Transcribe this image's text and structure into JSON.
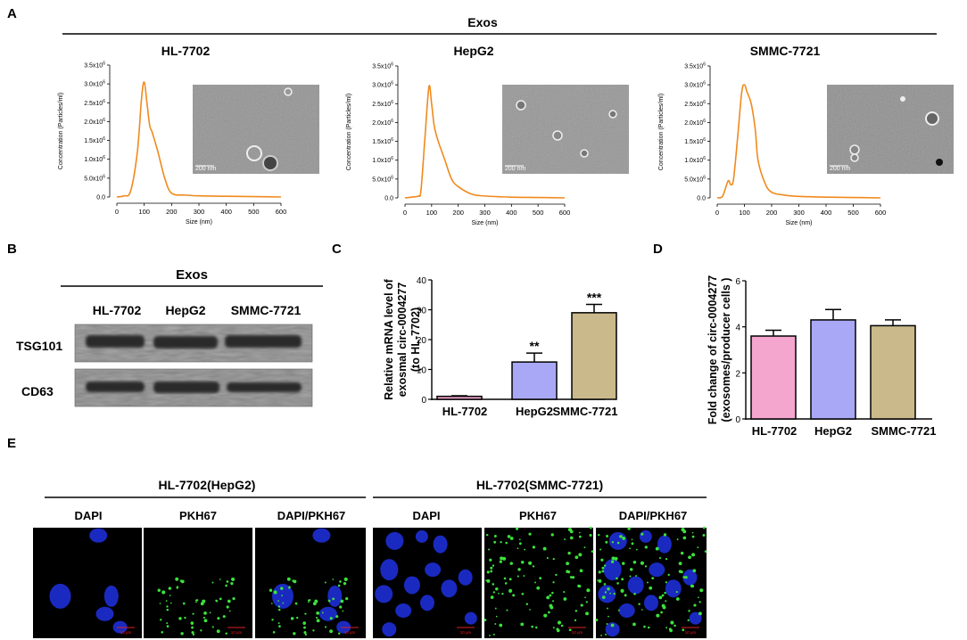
{
  "panel_labels": {
    "A": "A",
    "B": "B",
    "C": "C",
    "D": "D",
    "E": "E"
  },
  "panel_a": {
    "group_label": "Exos",
    "nta_plots": [
      {
        "title": "HL-7702",
        "ylabel": "Concentration (Particles/ml)",
        "xlabel": "Size (nm)",
        "y_ticks": [
          "0.0",
          "5.0x10",
          "1.0x10",
          "1.5x10",
          "2.0x10",
          "2.5x10",
          "3.0x10",
          "3.5x10"
        ],
        "y_tick_exp": "6",
        "x_ticks": [
          "0",
          "100",
          "200",
          "300",
          "400",
          "500",
          "600"
        ],
        "scale_bar": "200 nm"
      },
      {
        "title": "HepG2",
        "ylabel": "Concentration (Particles/ml)",
        "xlabel": "Size (nm)",
        "y_ticks": [
          "0.0",
          "5.0x10",
          "1.0x10",
          "1.5x10",
          "2.0x10",
          "2.5x10",
          "3.0x10",
          "3.5x10"
        ],
        "y_tick_exp": "6",
        "x_ticks": [
          "0",
          "100",
          "200",
          "300",
          "400",
          "500",
          "600"
        ],
        "scale_bar": "200 nm"
      },
      {
        "title": "SMMC-7721",
        "ylabel": "Concentration (Particles/ml)",
        "xlabel": "Size (nm)",
        "y_ticks": [
          "0.0",
          "5.0x10",
          "1.0x10",
          "1.5x10",
          "2.0x10",
          "2.5x10",
          "3.0x10",
          "3.5x10"
        ],
        "y_tick_exp": "6",
        "x_ticks": [
          "0",
          "100",
          "200",
          "300",
          "400",
          "500",
          "600"
        ],
        "scale_bar": "200 nm"
      }
    ]
  },
  "panel_b": {
    "group_label": "Exos",
    "lanes": [
      "HL-7702",
      "HepG2",
      "SMMC-7721"
    ],
    "bands": [
      "TSG101",
      "CD63"
    ]
  },
  "panel_e": {
    "groups": [
      "HL-7702(HepG2)",
      "HL-7702(SMMC-7721)"
    ],
    "channels": [
      "DAPI",
      "PKH67",
      "DAPI/PKH67"
    ],
    "scale_bar": "10 μm"
  },
  "chart_data": [
    {
      "type": "line",
      "x": [
        0,
        25,
        50,
        75,
        90,
        100,
        110,
        120,
        130,
        150,
        175,
        200,
        250,
        300,
        400,
        500,
        600
      ],
      "y": [
        0.0,
        0.03,
        0.15,
        1.2,
        2.6,
        3.05,
        2.5,
        1.9,
        1.7,
        1.2,
        0.5,
        0.1,
        0.05,
        0.03,
        0.02,
        0.01,
        0.0
      ],
      "xlabel": "Size (nm)",
      "ylabel": "Concentration (Particles/ml)",
      "xlim": [
        0,
        600
      ],
      "ylim": [
        0,
        3.5
      ],
      "y_unit_exp": 6,
      "color": "#f08a1e"
    },
    {
      "type": "line",
      "x": [
        0,
        25,
        50,
        60,
        75,
        90,
        100,
        110,
        125,
        150,
        175,
        200,
        250,
        300,
        400,
        500,
        600
      ],
      "y": [
        0.0,
        0.02,
        0.05,
        0.2,
        1.6,
        2.95,
        2.5,
        1.9,
        1.5,
        1.0,
        0.5,
        0.3,
        0.1,
        0.05,
        0.02,
        0.01,
        0.0
      ],
      "xlabel": "Size (nm)",
      "ylabel": "Concentration (Particles/ml)",
      "xlim": [
        0,
        600
      ],
      "ylim": [
        0,
        3.5
      ],
      "y_unit_exp": 6,
      "color": "#f08a1e"
    },
    {
      "type": "line",
      "x": [
        0,
        20,
        40,
        50,
        60,
        75,
        90,
        100,
        110,
        125,
        140,
        150,
        175,
        200,
        250,
        300,
        400,
        500,
        600
      ],
      "y": [
        0.0,
        0.05,
        0.45,
        0.35,
        0.5,
        1.6,
        2.8,
        3.0,
        2.8,
        2.5,
        1.8,
        1.0,
        0.4,
        0.15,
        0.07,
        0.04,
        0.02,
        0.01,
        0.0
      ],
      "xlabel": "Size (nm)",
      "ylabel": "Concentration (Particles/ml)",
      "xlim": [
        0,
        600
      ],
      "ylim": [
        0,
        3.5
      ],
      "y_unit_exp": 6,
      "color": "#f08a1e"
    },
    {
      "type": "bar",
      "categories": [
        "HL-7702",
        "HepG2",
        "SMMC-7721"
      ],
      "values": [
        1,
        12.5,
        29
      ],
      "errors": [
        0.2,
        3,
        2.8
      ],
      "significance": [
        "",
        "**",
        "***"
      ],
      "ylabel": "Relative mRNA level of exosmal circ-0004277 (to HL-7702)",
      "ylim": [
        0,
        40
      ],
      "y_ticks": [
        0,
        10,
        20,
        30,
        40
      ],
      "colors": [
        "#f4a6cf",
        "#a9a8f6",
        "#c9b98b"
      ]
    },
    {
      "type": "bar",
      "categories": [
        "HL-7702",
        "HepG2",
        "SMMC-7721"
      ],
      "values": [
        3.6,
        4.3,
        4.05
      ],
      "errors": [
        0.25,
        0.45,
        0.25
      ],
      "ylabel": "Fold change of circ-0004277 (exosomes/producer cells )",
      "ylim": [
        0,
        6
      ],
      "y_ticks": [
        0,
        2,
        4,
        6
      ],
      "colors": [
        "#f4a6cf",
        "#a9a8f6",
        "#c9b98b"
      ]
    }
  ]
}
